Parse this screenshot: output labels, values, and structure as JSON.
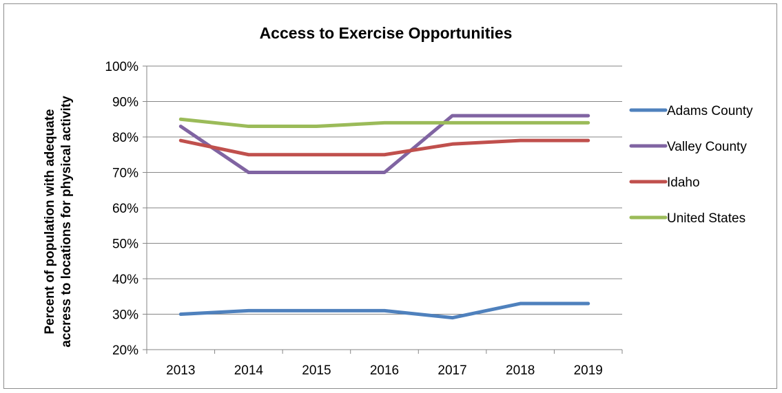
{
  "chart_data": {
    "type": "line",
    "title": "Access to Exercise Opportunities",
    "ylabel_lines": [
      "Percent of population with adequate",
      "accress to locations for physical activity"
    ],
    "xlabel": "",
    "categories": [
      "2013",
      "2014",
      "2015",
      "2016",
      "2017",
      "2018",
      "2019"
    ],
    "ylim": [
      20,
      100
    ],
    "yticks": [
      20,
      30,
      40,
      50,
      60,
      70,
      80,
      90,
      100
    ],
    "ytick_format": "%",
    "grid": "horizontal",
    "legend_position": "right",
    "series": [
      {
        "name": "Adams County",
        "color": "#4f81bd",
        "values": [
          30,
          31,
          31,
          31,
          29,
          33,
          33
        ]
      },
      {
        "name": "Valley County",
        "color": "#8064a2",
        "values": [
          83,
          70,
          70,
          70,
          86,
          86,
          86
        ]
      },
      {
        "name": "Idaho",
        "color": "#c0504d",
        "values": [
          79,
          75,
          75,
          75,
          78,
          79,
          79
        ]
      },
      {
        "name": "United States",
        "color": "#9bbb59",
        "values": [
          85,
          83,
          83,
          84,
          84,
          84,
          84
        ]
      }
    ]
  }
}
